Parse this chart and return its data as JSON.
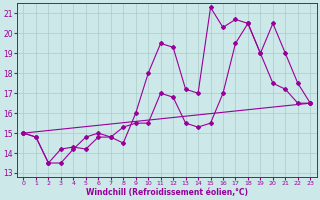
{
  "xlabel": "Windchill (Refroidissement éolien,°C)",
  "bg_color": "#cce8e8",
  "line_color": "#990099",
  "grid_color": "#aacccc",
  "xlim": [
    -0.5,
    23.5
  ],
  "ylim": [
    12.8,
    21.5
  ],
  "yticks": [
    13,
    14,
    15,
    16,
    17,
    18,
    19,
    20,
    21
  ],
  "xticks": [
    0,
    1,
    2,
    3,
    4,
    5,
    6,
    7,
    8,
    9,
    10,
    11,
    12,
    13,
    14,
    15,
    16,
    17,
    18,
    19,
    20,
    21,
    22,
    23
  ],
  "line1_x": [
    0,
    1,
    2,
    3,
    4,
    5,
    6,
    7,
    8,
    9,
    10,
    11,
    12,
    13,
    14,
    15,
    16,
    17,
    18,
    19,
    20,
    21,
    22,
    23
  ],
  "line1_y": [
    15.0,
    14.8,
    13.5,
    13.5,
    14.2,
    14.8,
    15.0,
    14.8,
    14.5,
    16.0,
    18.0,
    19.5,
    19.3,
    17.2,
    17.0,
    21.3,
    20.3,
    20.7,
    20.5,
    19.0,
    17.5,
    17.2,
    16.5,
    16.5
  ],
  "line2_x": [
    0,
    1,
    2,
    3,
    4,
    5,
    6,
    7,
    8,
    9,
    10,
    11,
    12,
    13,
    14,
    15,
    16,
    17,
    18,
    19,
    20,
    21,
    22,
    23
  ],
  "line2_y": [
    15.0,
    14.8,
    13.5,
    14.2,
    14.3,
    14.2,
    14.8,
    14.8,
    15.3,
    15.5,
    15.5,
    17.0,
    16.8,
    15.5,
    15.3,
    15.5,
    17.0,
    19.5,
    20.5,
    19.0,
    20.5,
    19.0,
    17.5,
    16.5
  ],
  "line3_x": [
    0,
    23
  ],
  "line3_y": [
    15.0,
    16.5
  ]
}
